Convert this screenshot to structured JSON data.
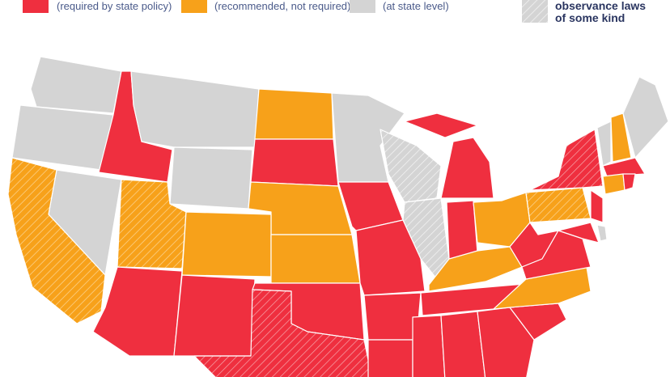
{
  "legend": {
    "items": [
      {
        "label": "(required by state policy)"
      },
      {
        "label": "(recommended, not required)"
      },
      {
        "label": "(at state level)"
      }
    ],
    "hatch_label": [
      "observance laws",
      "of some kind"
    ]
  }
}
